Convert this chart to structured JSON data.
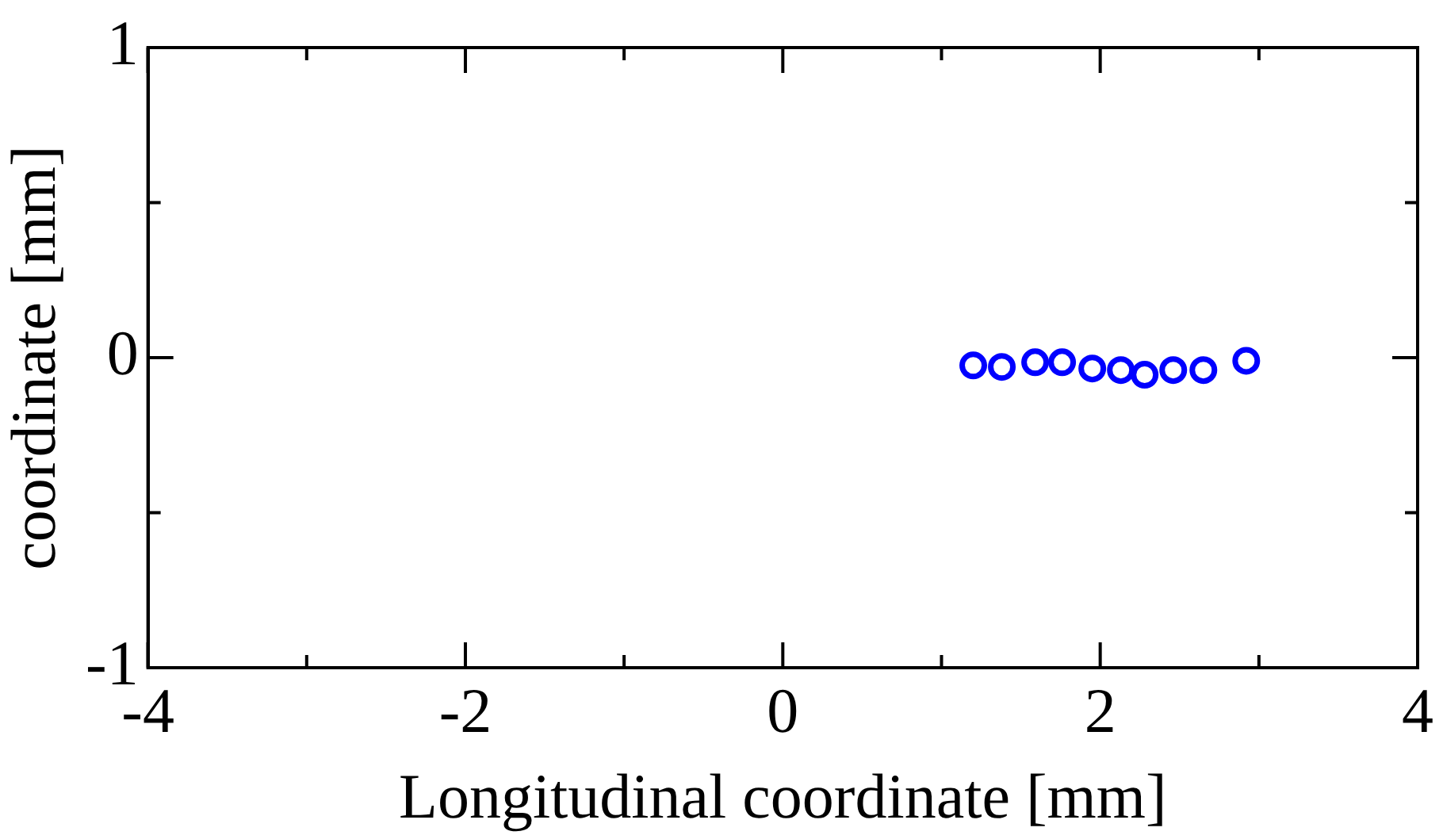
{
  "chart_data": {
    "type": "scatter",
    "xlabel": "Longitudinal coordinate [mm]",
    "ylabel": "coordinate [mm]",
    "x": [
      1.2,
      1.38,
      1.59,
      1.76,
      1.95,
      2.13,
      2.28,
      2.46,
      2.65,
      2.92
    ],
    "series": [
      {
        "color": "#0000ff",
        "values": [
          -0.025,
          -0.03,
          -0.015,
          -0.015,
          -0.035,
          -0.04,
          -0.055,
          -0.04,
          -0.04,
          -0.01
        ]
      }
    ],
    "marker": "circle",
    "grid": false,
    "legend": false,
    "xlim": [
      -4,
      4
    ],
    "xticks": [
      -4,
      {
        "value": -3,
        "label": null
      },
      -2,
      {
        "value": -1,
        "label": null
      },
      0,
      {
        "value": 1,
        "label": null
      },
      2,
      {
        "value": 3,
        "label": null
      },
      4
    ],
    "ylim": [
      -1,
      1
    ],
    "yticks": [
      -1,
      {
        "value": -0.5,
        "label": null
      },
      0,
      {
        "value": 0.5,
        "label": null
      },
      1
    ]
  }
}
